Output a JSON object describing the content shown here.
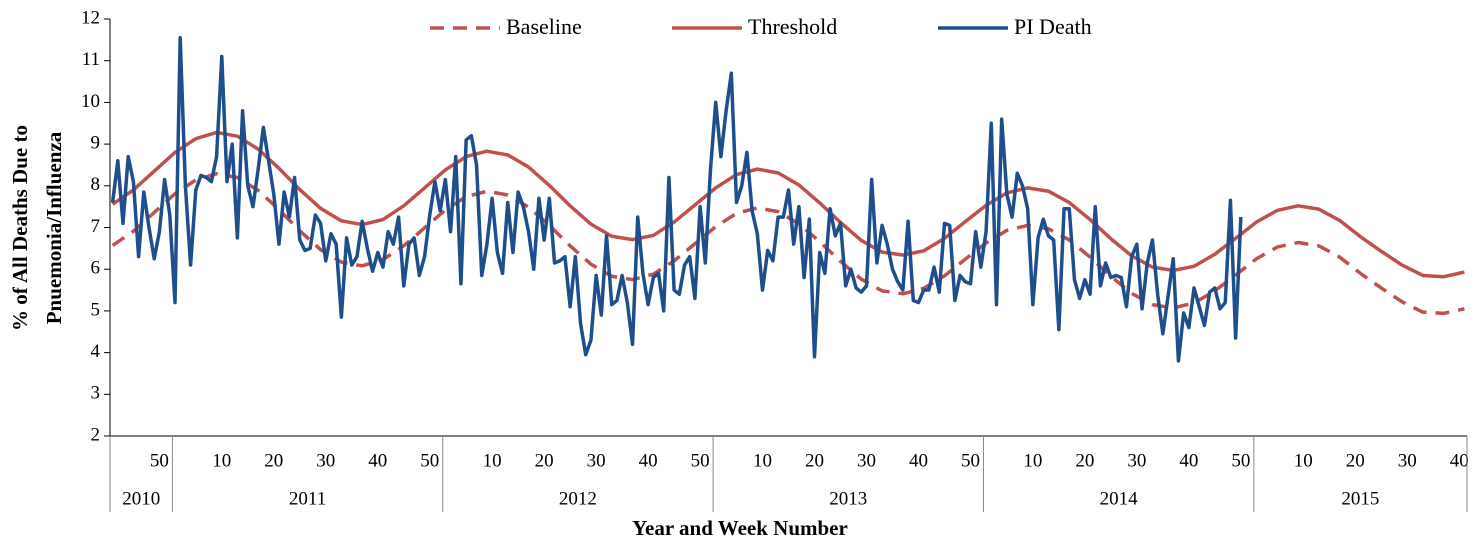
{
  "chart_data": {
    "type": "line",
    "y_label": [
      "% of All Deaths Due to",
      "Pnuemonia/Influenza"
    ],
    "x_label": "Year and Week Number",
    "legend": "top",
    "grid": false,
    "xlim": [
      -0.5,
      260.5
    ],
    "ylim": [
      2,
      12
    ],
    "yticks": [
      2,
      3,
      4,
      5,
      6,
      7,
      8,
      9,
      10,
      11,
      12
    ],
    "xticks": [
      {
        "value": 9,
        "label": "50"
      },
      {
        "value": 21,
        "label": "10"
      },
      {
        "value": 31,
        "label": "20"
      },
      {
        "value": 41,
        "label": "30"
      },
      {
        "value": 51,
        "label": "40"
      },
      {
        "value": 61,
        "label": "50"
      },
      {
        "value": 73,
        "label": "10"
      },
      {
        "value": 83,
        "label": "20"
      },
      {
        "value": 93,
        "label": "30"
      },
      {
        "value": 103,
        "label": "40"
      },
      {
        "value": 113,
        "label": "50"
      },
      {
        "value": 125,
        "label": "10"
      },
      {
        "value": 135,
        "label": "20"
      },
      {
        "value": 145,
        "label": "30"
      },
      {
        "value": 155,
        "label": "40"
      },
      {
        "value": 165,
        "label": "50"
      },
      {
        "value": 177,
        "label": "10"
      },
      {
        "value": 187,
        "label": "20"
      },
      {
        "value": 197,
        "label": "30"
      },
      {
        "value": 207,
        "label": "40"
      },
      {
        "value": 217,
        "label": "50"
      },
      {
        "value": 229,
        "label": "10"
      },
      {
        "value": 239,
        "label": "20"
      },
      {
        "value": 249,
        "label": "30"
      },
      {
        "value": 259,
        "label": "40"
      }
    ],
    "xgroups": [
      {
        "label": "2010",
        "start": -0.5,
        "end": 11.5
      },
      {
        "label": "2011",
        "start": 11.5,
        "end": 63.5
      },
      {
        "label": "2012",
        "start": 63.5,
        "end": 115.5
      },
      {
        "label": "2013",
        "start": 115.5,
        "end": 167.5
      },
      {
        "label": "2014",
        "start": 167.5,
        "end": 219.5
      },
      {
        "label": "2015",
        "start": 219.5,
        "end": 260.5
      }
    ],
    "series": [
      {
        "name": "Baseline",
        "color": "#c0504d",
        "dash": true,
        "x": [
          0,
          4,
          8,
          12,
          16,
          20,
          24,
          28,
          32,
          36,
          40,
          44,
          48,
          52,
          56,
          60,
          64,
          68,
          72,
          76,
          80,
          84,
          88,
          92,
          96,
          100,
          104,
          108,
          112,
          116,
          120,
          124,
          128,
          132,
          136,
          140,
          144,
          148,
          152,
          156,
          160,
          164,
          168,
          172,
          176,
          180,
          184,
          188,
          192,
          196,
          200,
          204,
          208,
          212,
          216,
          220,
          224,
          228,
          232,
          236,
          240,
          244,
          248,
          252,
          256,
          260
        ],
        "values": [
          6.57,
          6.91,
          7.36,
          7.81,
          8.14,
          8.29,
          8.2,
          7.89,
          7.43,
          6.92,
          6.47,
          6.17,
          6.08,
          6.23,
          6.56,
          6.99,
          7.42,
          7.74,
          7.87,
          7.78,
          7.49,
          7.05,
          6.56,
          6.12,
          5.83,
          5.75,
          5.88,
          6.2,
          6.61,
          7.02,
          7.34,
          7.47,
          7.38,
          7.09,
          6.66,
          6.19,
          5.76,
          5.48,
          5.41,
          5.54,
          5.84,
          6.24,
          6.63,
          6.93,
          7.05,
          6.97,
          6.7,
          6.29,
          5.83,
          5.42,
          5.15,
          5.07,
          5.19,
          5.48,
          5.86,
          6.25,
          6.53,
          6.64,
          6.56,
          6.29,
          5.9,
          5.55,
          5.22,
          4.97,
          4.94,
          5.05
        ]
      },
      {
        "name": "Threshold",
        "color": "#c0504d",
        "dash": false,
        "x": [
          0,
          4,
          8,
          12,
          16,
          20,
          24,
          28,
          32,
          36,
          40,
          44,
          48,
          52,
          56,
          60,
          64,
          68,
          72,
          76,
          80,
          84,
          88,
          92,
          96,
          100,
          104,
          108,
          112,
          116,
          120,
          124,
          128,
          132,
          136,
          140,
          144,
          148,
          152,
          156,
          160,
          164,
          168,
          172,
          176,
          180,
          184,
          188,
          192,
          196,
          200,
          204,
          208,
          212,
          216,
          220,
          224,
          228,
          232,
          236,
          240,
          244,
          248,
          252,
          256,
          260
        ],
        "values": [
          7.56,
          7.9,
          8.35,
          8.8,
          9.13,
          9.28,
          9.19,
          8.88,
          8.42,
          7.91,
          7.46,
          7.16,
          7.07,
          7.19,
          7.52,
          7.95,
          8.38,
          8.7,
          8.83,
          8.74,
          8.45,
          8.01,
          7.52,
          7.08,
          6.79,
          6.71,
          6.81,
          7.13,
          7.54,
          7.95,
          8.27,
          8.4,
          8.31,
          8.02,
          7.59,
          7.12,
          6.69,
          6.41,
          6.34,
          6.44,
          6.74,
          7.14,
          7.53,
          7.83,
          7.95,
          7.87,
          7.6,
          7.19,
          6.73,
          6.32,
          6.05,
          5.97,
          6.07,
          6.36,
          6.74,
          7.13,
          7.41,
          7.52,
          7.44,
          7.17,
          6.78,
          6.43,
          6.1,
          5.85,
          5.82,
          5.93
        ]
      },
      {
        "name": "PI Death",
        "color": "#1f4e8c",
        "dash": false,
        "x": [
          0,
          1,
          2,
          3,
          4,
          5,
          6,
          7,
          8,
          9,
          10,
          11,
          12,
          13,
          14,
          15,
          16,
          17,
          18,
          19,
          20,
          21,
          22,
          23,
          24,
          25,
          26,
          27,
          28,
          29,
          30,
          31,
          32,
          33,
          34,
          35,
          36,
          37,
          38,
          39,
          40,
          41,
          42,
          43,
          44,
          45,
          46,
          47,
          48,
          49,
          50,
          51,
          52,
          53,
          54,
          55,
          56,
          57,
          58,
          59,
          60,
          61,
          62,
          63,
          64,
          65,
          66,
          67,
          68,
          69,
          70,
          71,
          72,
          73,
          74,
          75,
          76,
          77,
          78,
          79,
          80,
          81,
          82,
          83,
          84,
          85,
          86,
          87,
          88,
          89,
          90,
          91,
          92,
          93,
          94,
          95,
          96,
          97,
          98,
          99,
          100,
          101,
          102,
          103,
          104,
          105,
          106,
          107,
          108,
          109,
          110,
          111,
          112,
          113,
          114,
          115,
          116,
          117,
          118,
          119,
          120,
          121,
          122,
          123,
          124,
          125,
          126,
          127,
          128,
          129,
          130,
          131,
          132,
          133,
          134,
          135,
          136,
          137,
          138,
          139,
          140,
          141,
          142,
          143,
          144,
          145,
          146,
          147,
          148,
          149,
          150,
          151,
          152,
          153,
          154,
          155,
          156,
          157,
          158,
          159,
          160,
          161,
          162,
          163,
          164,
          165,
          166,
          167,
          168,
          169,
          170,
          171,
          172,
          173,
          174,
          175,
          176,
          177,
          178,
          179,
          180,
          181,
          182,
          183,
          184,
          185,
          186,
          187,
          188,
          189,
          190,
          191,
          192,
          193,
          194,
          195,
          196,
          197,
          198,
          199,
          200,
          201,
          202,
          203,
          204,
          205,
          206,
          207,
          208,
          209,
          210,
          211,
          212,
          213,
          214,
          215,
          216,
          217
        ],
        "values": [
          7.6,
          8.6,
          7.1,
          8.7,
          8.1,
          6.3,
          7.85,
          7.0,
          6.25,
          6.9,
          8.15,
          7.3,
          5.2,
          11.55,
          8.0,
          6.1,
          7.9,
          8.25,
          8.2,
          8.1,
          8.7,
          11.1,
          8.1,
          9.0,
          6.75,
          9.8,
          8.0,
          7.5,
          8.4,
          9.4,
          8.6,
          7.8,
          6.6,
          7.85,
          7.25,
          8.2,
          6.7,
          6.45,
          6.5,
          7.3,
          7.1,
          6.2,
          6.85,
          6.6,
          4.85,
          6.75,
          6.1,
          6.3,
          7.15,
          6.5,
          5.95,
          6.4,
          6.05,
          6.9,
          6.6,
          7.25,
          5.6,
          6.6,
          6.75,
          5.85,
          6.3,
          7.3,
          8.1,
          7.4,
          8.15,
          6.9,
          8.7,
          5.65,
          9.1,
          9.2,
          8.5,
          5.85,
          6.6,
          7.7,
          6.4,
          5.9,
          7.6,
          6.4,
          7.85,
          7.5,
          6.9,
          6.0,
          7.7,
          6.7,
          7.7,
          6.15,
          6.2,
          6.3,
          5.1,
          6.3,
          4.7,
          3.95,
          4.3,
          5.85,
          4.9,
          6.8,
          5.15,
          5.25,
          5.85,
          5.2,
          4.2,
          7.25,
          5.9,
          5.15,
          5.8,
          5.9,
          5.0,
          8.2,
          5.5,
          5.4,
          6.1,
          6.3,
          5.3,
          7.5,
          6.15,
          8.4,
          10.0,
          8.7,
          9.8,
          10.7,
          7.6,
          8.0,
          8.8,
          7.4,
          6.85,
          5.5,
          6.45,
          6.2,
          7.25,
          7.25,
          7.9,
          6.6,
          7.5,
          5.8,
          7.2,
          3.9,
          6.4,
          5.9,
          7.45,
          6.8,
          7.1,
          5.6,
          6.0,
          5.55,
          5.45,
          5.6,
          8.15,
          6.15,
          7.05,
          6.6,
          6.0,
          5.7,
          5.5,
          7.15,
          5.25,
          5.2,
          5.5,
          5.5,
          6.05,
          5.45,
          7.1,
          7.05,
          5.25,
          5.85,
          5.7,
          5.65,
          6.9,
          6.05,
          6.9,
          9.5,
          5.15,
          9.6,
          7.8,
          7.25,
          8.3,
          8.0,
          7.45,
          5.15,
          6.75,
          7.2,
          6.8,
          6.7,
          4.55,
          7.45,
          7.45,
          5.75,
          5.3,
          5.75,
          5.4,
          7.5,
          5.6,
          6.15,
          5.8,
          5.85,
          5.8,
          5.1,
          6.3,
          6.6,
          5.05,
          6.15,
          6.7,
          5.4,
          4.45,
          5.35,
          6.25,
          3.8,
          4.95,
          4.6,
          5.55,
          5.1,
          4.65,
          5.45,
          5.55,
          5.05,
          5.2,
          7.65,
          4.35,
          7.25
        ]
      }
    ]
  }
}
